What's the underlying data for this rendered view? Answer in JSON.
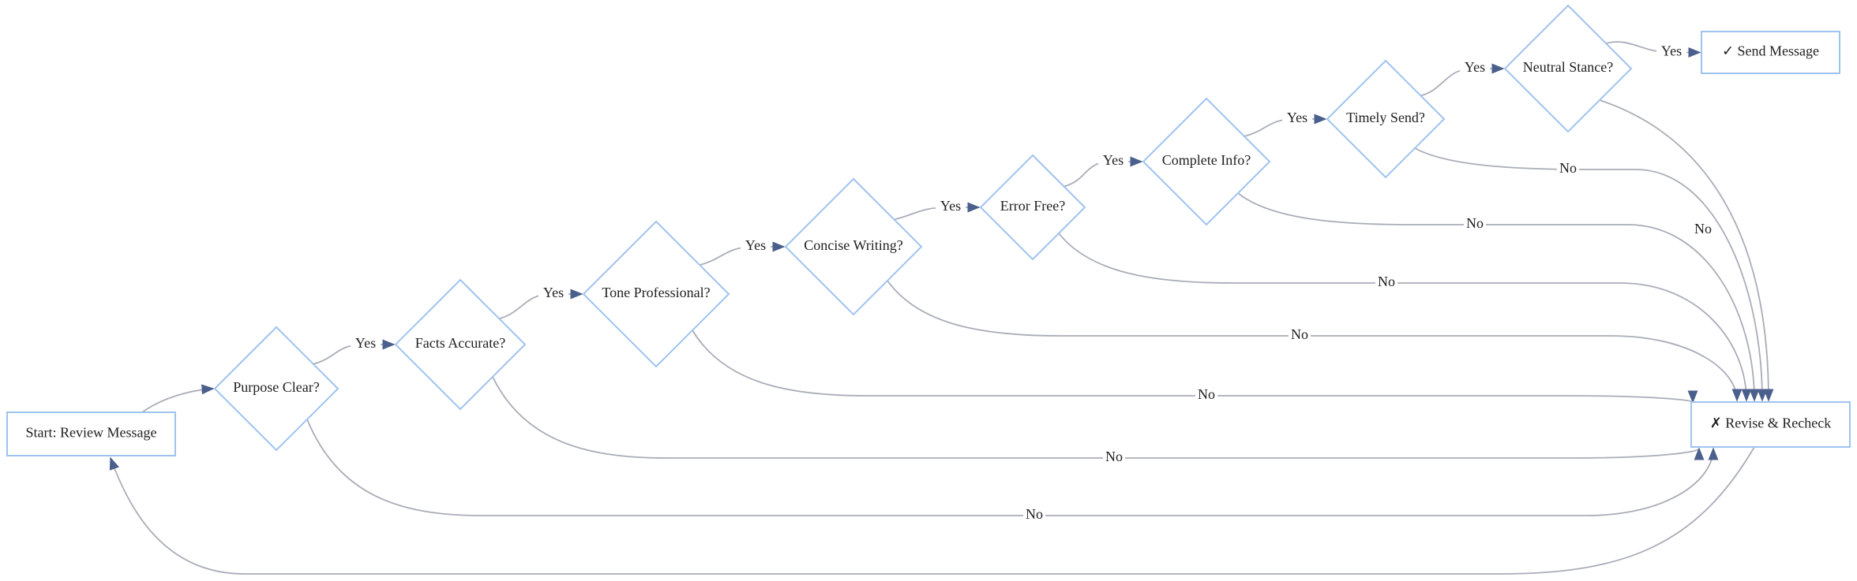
{
  "nodes": [
    {
      "label": "Start: Review Message"
    },
    {
      "label": "Purpose Clear?"
    },
    {
      "label": "Facts Accurate?"
    },
    {
      "label": "Tone Professional?"
    },
    {
      "label": "Concise Writing?"
    },
    {
      "label": "Error Free?"
    },
    {
      "label": "Complete Info?"
    },
    {
      "label": "Timely Send?"
    },
    {
      "label": "Neutral Stance?"
    },
    {
      "label": "✓ Send Message"
    },
    {
      "label": "✗ Revise & Recheck"
    }
  ],
  "edges": [
    {
      "label": "Yes"
    },
    {
      "label": "Yes"
    },
    {
      "label": "Yes"
    },
    {
      "label": "Yes"
    },
    {
      "label": "Yes"
    },
    {
      "label": "Yes"
    },
    {
      "label": "Yes"
    },
    {
      "label": "Yes"
    },
    {
      "label": "No"
    },
    {
      "label": "No"
    },
    {
      "label": "No"
    },
    {
      "label": "No"
    },
    {
      "label": "No"
    },
    {
      "label": "No"
    },
    {
      "label": "No"
    },
    {
      "label": "No"
    }
  ]
}
